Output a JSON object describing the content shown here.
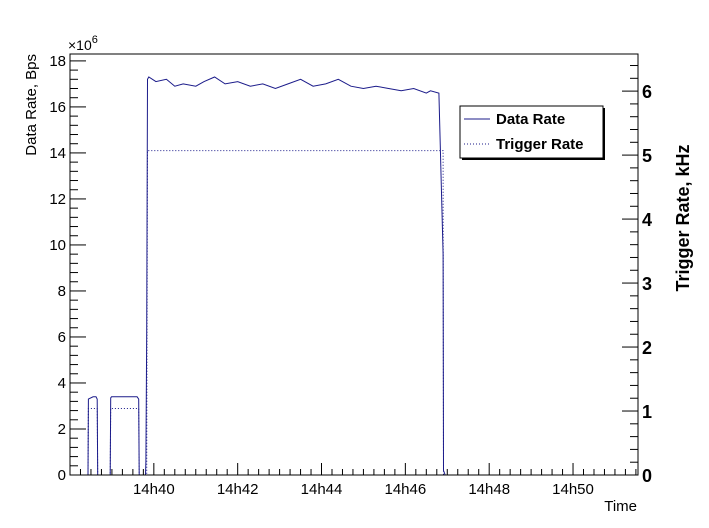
{
  "chart_data": {
    "type": "line",
    "title": "",
    "xlabel": "Time",
    "ylabel_left": "Data Rate, Bps",
    "ylabel_right": "Trigger Rate, kHz",
    "left_axis_multiplier": "×10",
    "left_axis_exponent": "6",
    "x_tick_labels": [
      "14h40",
      "14h42",
      "14h44",
      "14h46",
      "14h48",
      "14h50"
    ],
    "x_tick_minutes": [
      40,
      42,
      44,
      46,
      48,
      50
    ],
    "xlim_minutes": [
      38.0,
      51.55
    ],
    "ylim_left": [
      0,
      18.3
    ],
    "y_left_ticks": [
      0,
      2,
      4,
      6,
      8,
      10,
      12,
      14,
      16,
      18
    ],
    "ylim_right": [
      0,
      6.58
    ],
    "y_right_ticks": [
      0,
      1,
      2,
      3,
      4,
      5,
      6
    ],
    "legend_position": "top-right",
    "grid": false,
    "colors": {
      "series": "#1b1b8a",
      "axis": "#000000",
      "background": "#ffffff"
    },
    "series": [
      {
        "name": "Data Rate",
        "axis": "left",
        "style": "solid",
        "x": [
          38.43,
          38.44,
          38.55,
          38.62,
          38.65,
          38.66,
          38.96,
          38.97,
          38.99,
          39.0,
          39.1,
          39.3,
          39.5,
          39.6,
          39.64,
          39.65,
          39.8,
          39.81,
          39.83,
          39.85,
          39.88,
          40.05,
          40.3,
          40.5,
          40.7,
          41.0,
          41.2,
          41.45,
          41.7,
          42.0,
          42.3,
          42.6,
          42.9,
          43.2,
          43.5,
          43.8,
          44.1,
          44.4,
          44.7,
          45.0,
          45.3,
          45.6,
          45.9,
          46.2,
          46.5,
          46.6,
          46.8,
          46.9,
          46.91,
          46.95,
          51.55
        ],
        "y": [
          0,
          3.3,
          3.4,
          3.4,
          3.3,
          0,
          0,
          3.35,
          3.4,
          3.4,
          3.4,
          3.4,
          3.4,
          3.4,
          3.3,
          0,
          0,
          0.6,
          6.2,
          17.2,
          17.3,
          17.1,
          17.2,
          16.9,
          17.0,
          16.9,
          17.1,
          17.3,
          17.0,
          17.1,
          16.9,
          17.0,
          16.8,
          17.0,
          17.2,
          16.9,
          17.0,
          17.2,
          16.9,
          16.8,
          16.9,
          16.8,
          16.7,
          16.8,
          16.6,
          16.7,
          16.6,
          9.6,
          0.2,
          0,
          0
        ]
      },
      {
        "name": "Trigger Rate",
        "axis": "right",
        "style": "dotted",
        "x": [
          38.43,
          38.44,
          38.65,
          38.66,
          38.96,
          38.97,
          39.64,
          39.65,
          39.83,
          39.85,
          46.9,
          46.91,
          51.55
        ],
        "y": [
          0,
          1.04,
          1.04,
          0,
          0,
          1.04,
          1.04,
          0,
          0,
          5.07,
          5.07,
          0,
          0
        ]
      }
    ]
  }
}
